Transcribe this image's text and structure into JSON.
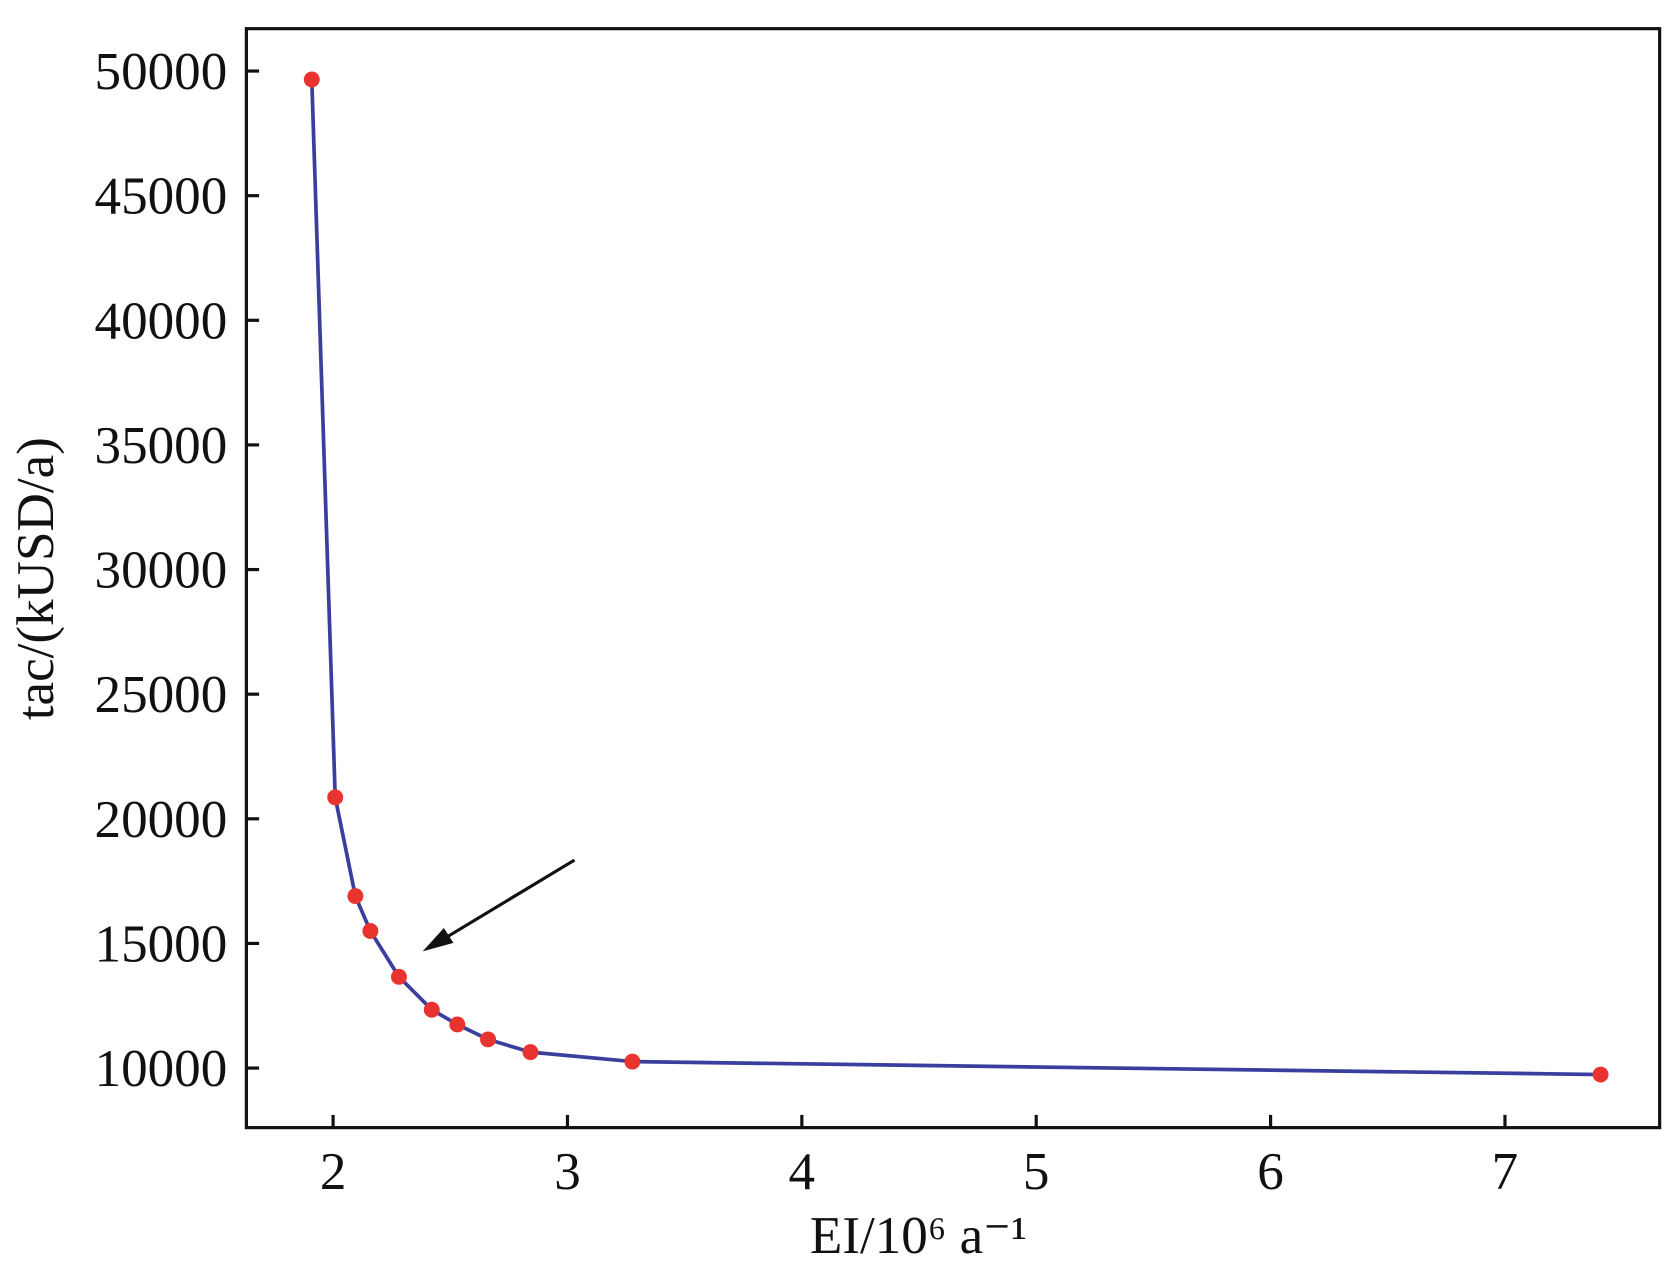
{
  "chart_data": {
    "type": "line",
    "x_label": "EI/10⁶ a⁻¹",
    "y_label": "tac/(kUSD/a)",
    "x": [
      1.909,
      2.009,
      2.095,
      2.159,
      2.281,
      2.421,
      2.53,
      2.661,
      2.842,
      3.277,
      7.408
    ],
    "series": [
      {
        "color": "#3a3f9e",
        "marker_color": "#e8332f",
        "values": [
          49660,
          20860,
          16900,
          15500,
          13660,
          12340,
          11750,
          11150,
          10640,
          10260,
          9740
        ]
      }
    ],
    "xlim": [
      1.63,
      7.66
    ],
    "xticks": [
      2,
      3,
      4,
      5,
      6,
      7
    ],
    "ylim": [
      7610,
      51700
    ],
    "yticks": [
      10000,
      15000,
      20000,
      25000,
      30000,
      35000,
      40000,
      45000,
      50000
    ]
  }
}
